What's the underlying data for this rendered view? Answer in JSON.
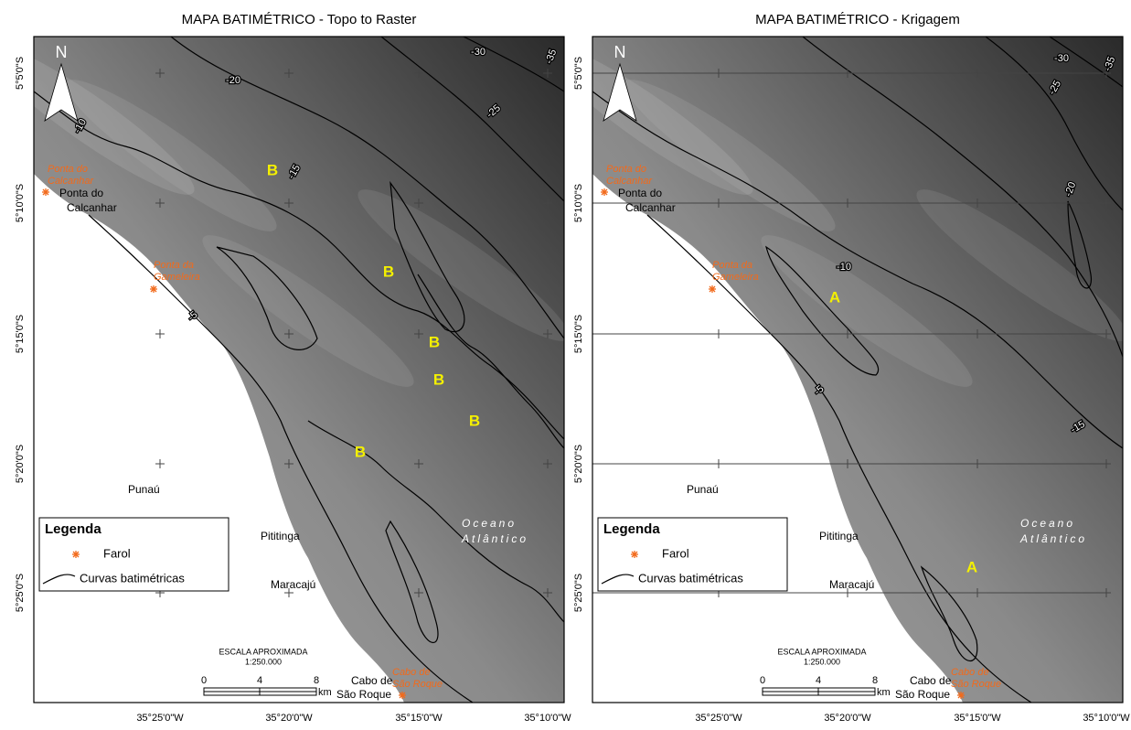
{
  "panels": [
    {
      "title": "MAPA BATIMÉTRICO - Topo to Raster",
      "north": "N",
      "latitude_labels": [
        "5°5'0\"S",
        "5°10'0\"S",
        "5°15'0\"S",
        "5°20'0\"S",
        "5°25'0\"S"
      ],
      "longitude_labels": [
        "35°25'0\"W",
        "35°20'0\"W",
        "35°15'0\"W",
        "35°10'0\"W"
      ],
      "places": [
        [
          "Ponta do",
          "Calcanhar"
        ],
        [
          "Punaú"
        ],
        [
          "Pititinga"
        ],
        [
          "Maracajú"
        ],
        [
          "Cabo de",
          "São Roque"
        ]
      ],
      "lighthouse_labels": [
        [
          "Ponta do",
          "Calcanhar"
        ],
        [
          "Ponta da",
          "Gameleira"
        ],
        [
          "Cabo de",
          "São Roque"
        ]
      ],
      "ocean_label": [
        "Oceano",
        "Atlântico"
      ],
      "contour_labels": [
        "-20",
        "-30",
        "-35",
        "-25",
        "-15",
        "-10",
        "-5"
      ],
      "feature_labels": [
        "B",
        "B",
        "B",
        "B",
        "B",
        "B"
      ],
      "legend": {
        "title": "Legenda",
        "items": [
          "Farol",
          "Curvas batimétricas"
        ]
      },
      "scale": {
        "title": "ESCALA APROXIMADA",
        "ratio": "1:250.000",
        "ticks": [
          "0",
          "4",
          "8"
        ],
        "unit": "km"
      }
    },
    {
      "title": "MAPA BATIMÉTRICO - Krigagem",
      "north": "N",
      "latitude_labels": [
        "5°5'0\"S",
        "5°10'0\"S",
        "5°15'0\"S",
        "5°20'0\"S",
        "5°25'0\"S"
      ],
      "longitude_labels": [
        "35°25'0\"W",
        "35°20'0\"W",
        "35°15'0\"W",
        "35°10'0\"W"
      ],
      "places": [
        [
          "Ponta do",
          "Calcanhar"
        ],
        [
          "Punaú"
        ],
        [
          "Pititinga"
        ],
        [
          "Maracajú"
        ],
        [
          "Cabo de",
          "São Roque"
        ]
      ],
      "lighthouse_labels": [
        [
          "Ponta do",
          "Calcanhar"
        ],
        [
          "Ponta da",
          "Gameleira"
        ],
        [
          "Cabo de",
          "São Roque"
        ]
      ],
      "ocean_label": [
        "Oceano",
        "Atlântico"
      ],
      "contour_labels": [
        "-35",
        "-30",
        "-25",
        "-20",
        "-10",
        "-5",
        "-15"
      ],
      "feature_labels": [
        "A",
        "A"
      ],
      "legend": {
        "title": "Legenda",
        "items": [
          "Farol",
          "Curvas batimétricas"
        ]
      },
      "scale": {
        "title": "ESCALA APROXIMADA",
        "ratio": "1:250.000",
        "ticks": [
          "0",
          "4",
          "8"
        ],
        "unit": "km"
      }
    }
  ]
}
